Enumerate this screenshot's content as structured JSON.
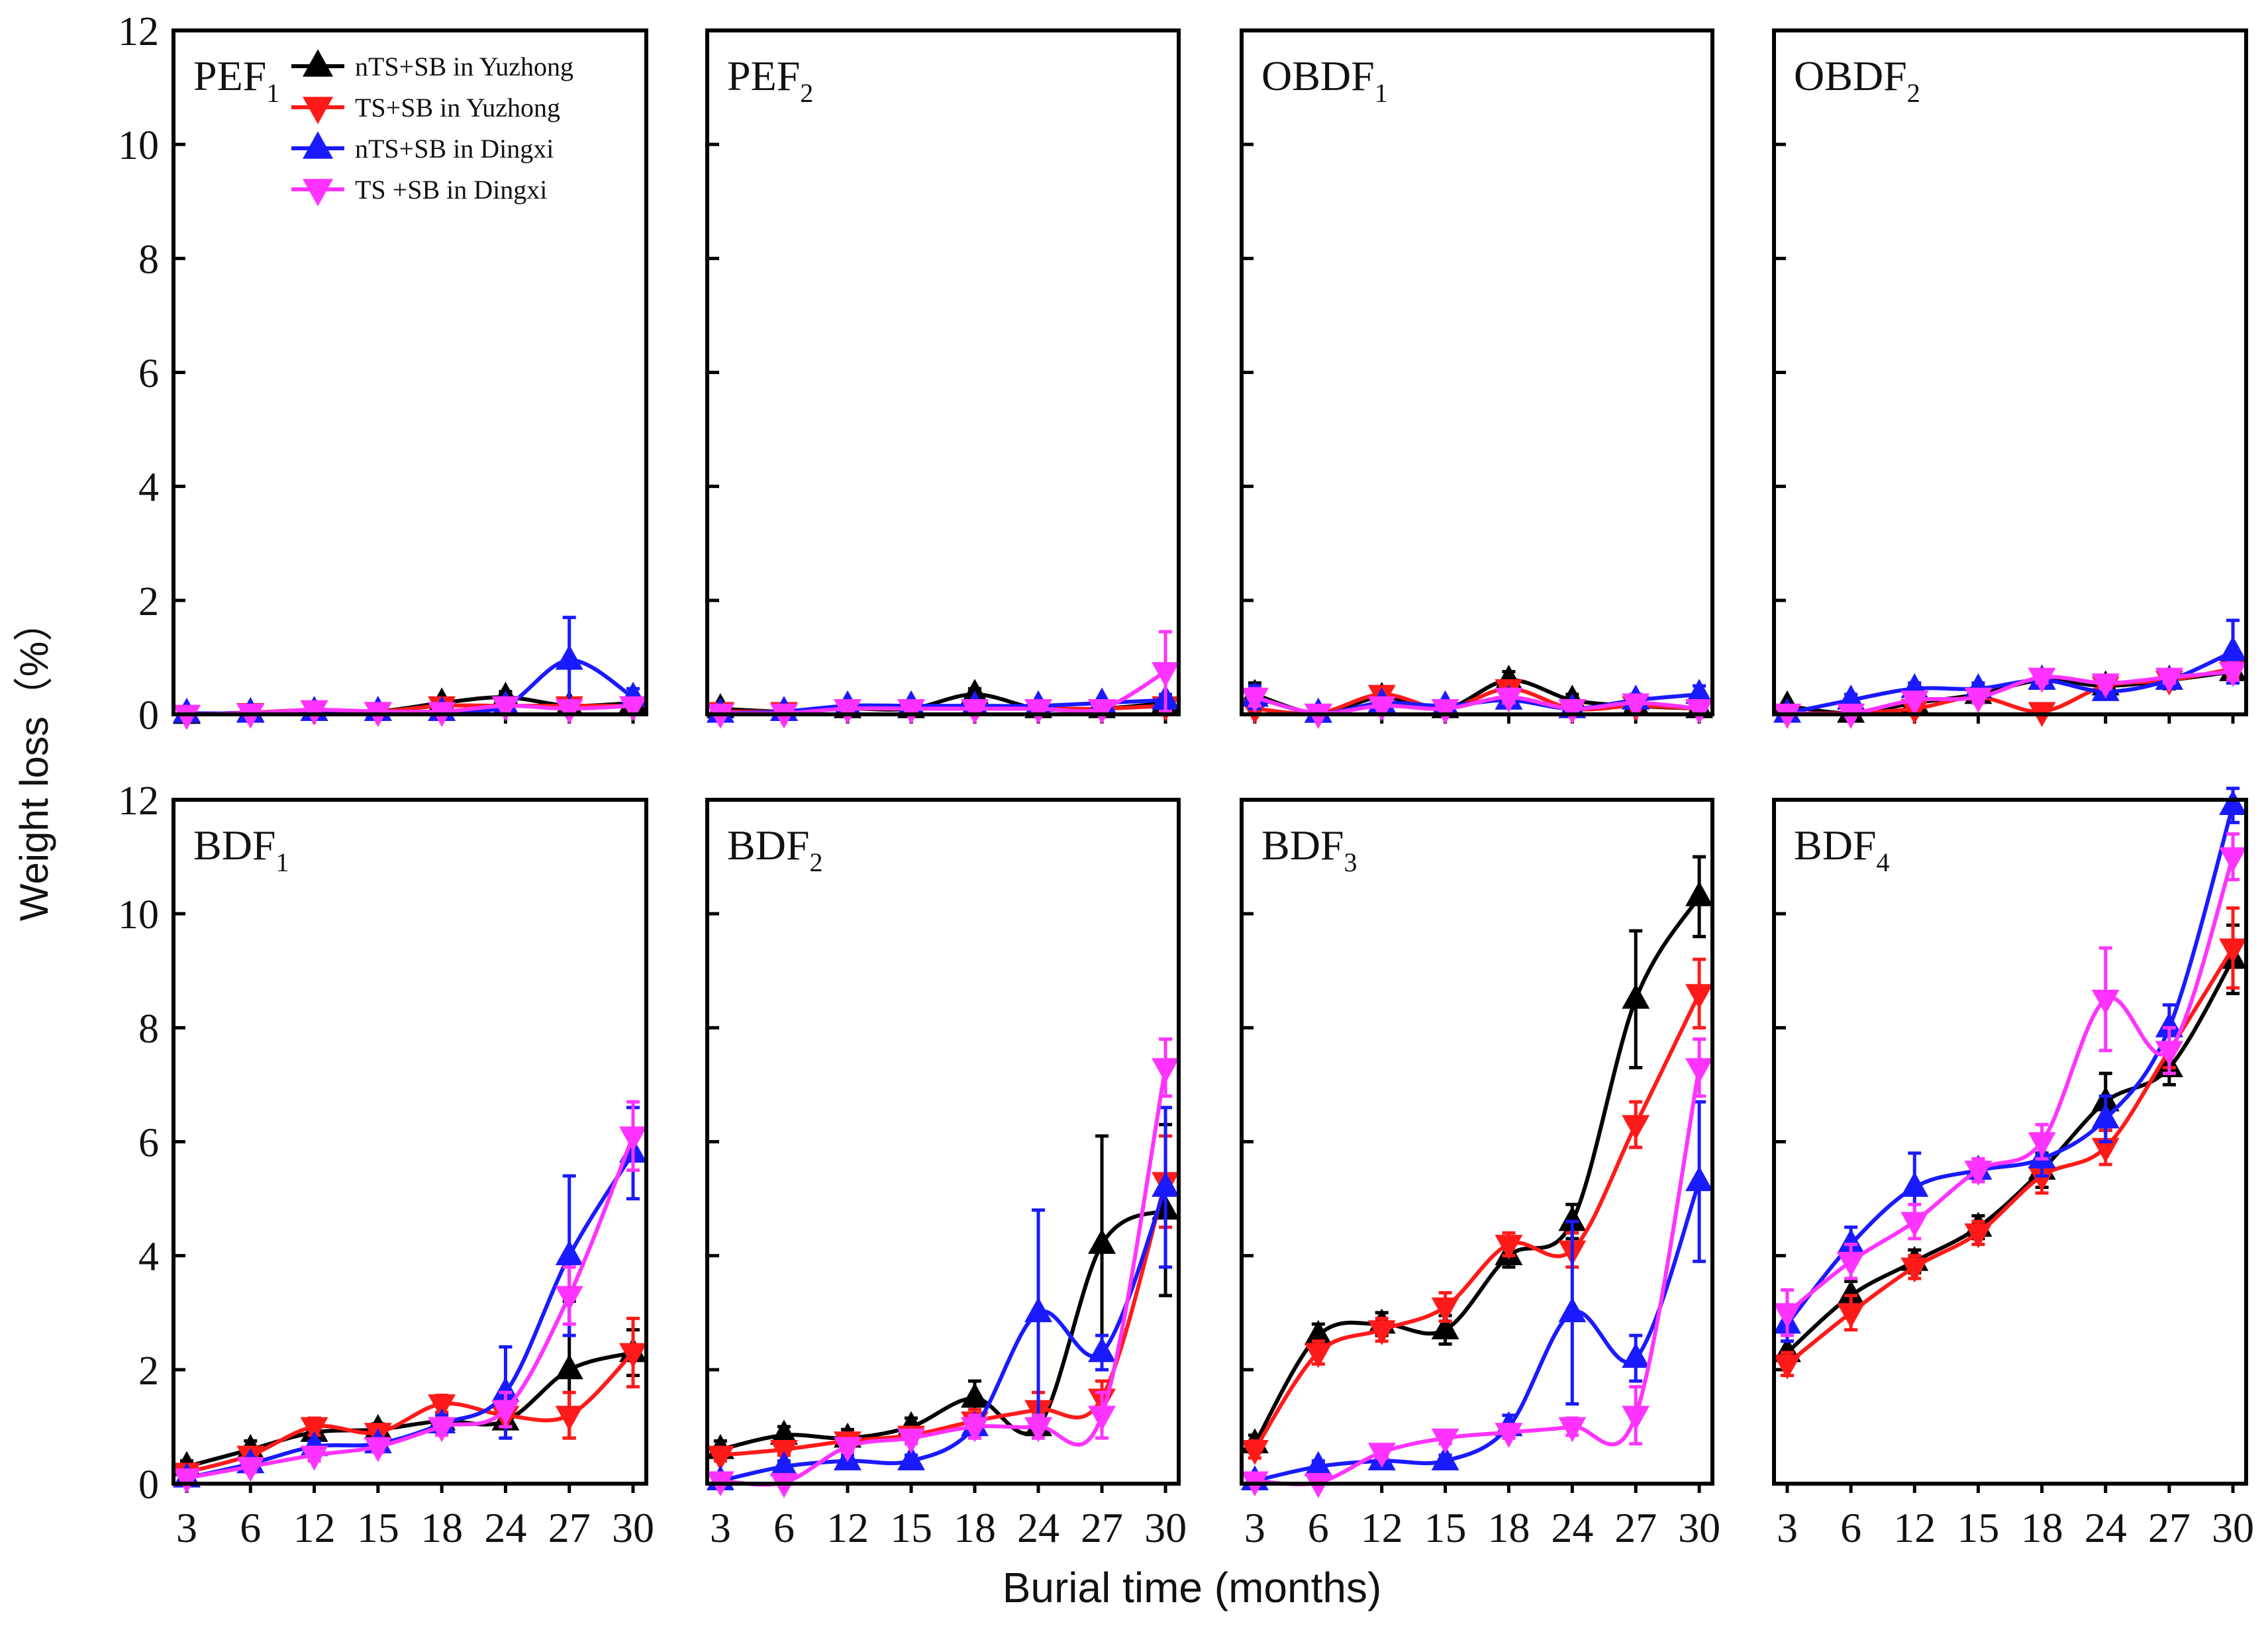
{
  "figure": {
    "ylabel": "Weight loss（%）",
    "xlabel": "Burial time (months)",
    "x_ticks": [
      "3",
      "6",
      "12",
      "15",
      "18",
      "24",
      "27",
      "30"
    ],
    "y_ticks": [
      "0",
      "2",
      "4",
      "6",
      "8",
      "10",
      "12"
    ],
    "ylim": [
      0,
      12
    ]
  },
  "legend": [
    {
      "label": "nTS+SB in Yuzhong",
      "color": "#000000",
      "marker": "triangle-up"
    },
    {
      "label": "TS+SB in Yuzhong",
      "color": "#ff1a1a",
      "marker": "triangle-down"
    },
    {
      "label": "nTS+SB in Dingxi",
      "color": "#1a1aff",
      "marker": "triangle-up"
    },
    {
      "label": "TS +SB in Dingxi",
      "color": "#ff33ff",
      "marker": "triangle-down"
    }
  ],
  "chart_data": [
    {
      "type": "line",
      "title": "PEF",
      "title_sub": "1",
      "categories": [
        "3",
        "6",
        "12",
        "15",
        "18",
        "24",
        "27",
        "30"
      ],
      "ylim": [
        0,
        12
      ],
      "series": [
        {
          "name": "nTS+SB in Yuzhong",
          "values": [
            0,
            0.03,
            0.05,
            0.05,
            0.2,
            0.3,
            0.15,
            0.2
          ],
          "errors": [
            0,
            0.02,
            0.03,
            0.03,
            0.08,
            0.1,
            0.05,
            0.05
          ]
        },
        {
          "name": "TS+SB in Yuzhong",
          "values": [
            0,
            0.03,
            0.08,
            0.05,
            0.15,
            0.15,
            0.15,
            0.15
          ],
          "errors": [
            0,
            0.02,
            0.03,
            0.03,
            0.05,
            0.05,
            0.05,
            0.05
          ]
        },
        {
          "name": "nTS+SB in Dingxi",
          "values": [
            0.02,
            0.02,
            0.05,
            0.05,
            0.05,
            0.15,
            0.95,
            0.3
          ],
          "errors": [
            0,
            0.01,
            0.02,
            0.02,
            0.02,
            0.05,
            0.75,
            0.15
          ]
        },
        {
          "name": "TS +SB in Dingxi",
          "values": [
            0,
            0.02,
            0.08,
            0.05,
            0.05,
            0.15,
            0.1,
            0.15
          ],
          "errors": [
            0,
            0.01,
            0.03,
            0.02,
            0.02,
            0.05,
            0.05,
            0.05
          ]
        }
      ]
    },
    {
      "type": "line",
      "title": "PEF",
      "title_sub": "2",
      "categories": [
        "3",
        "6",
        "12",
        "15",
        "18",
        "24",
        "27",
        "30"
      ],
      "ylim": [
        0,
        12
      ],
      "series": [
        {
          "name": "nTS+SB in Yuzhong",
          "values": [
            0.1,
            0.05,
            0.1,
            0.1,
            0.35,
            0.1,
            0.1,
            0.2
          ],
          "errors": [
            0.05,
            0.02,
            0.03,
            0.03,
            0.1,
            0.03,
            0.03,
            0.05
          ]
        },
        {
          "name": "TS+SB in Yuzhong",
          "values": [
            0.05,
            0.05,
            0.1,
            0.1,
            0.1,
            0.1,
            0.1,
            0.15
          ],
          "errors": [
            0.02,
            0.02,
            0.03,
            0.03,
            0.03,
            0.03,
            0.03,
            0.05
          ]
        },
        {
          "name": "nTS+SB in Dingxi",
          "values": [
            0.02,
            0.05,
            0.15,
            0.15,
            0.15,
            0.15,
            0.2,
            0.25
          ],
          "errors": [
            0.01,
            0.02,
            0.05,
            0.05,
            0.05,
            0.05,
            0.05,
            0.1
          ]
        },
        {
          "name": "TS +SB in Dingxi",
          "values": [
            0.02,
            0.02,
            0.1,
            0.1,
            0.1,
            0.1,
            0.1,
            0.75
          ],
          "errors": [
            0.01,
            0.01,
            0.03,
            0.03,
            0.03,
            0.03,
            0.03,
            0.7
          ]
        }
      ]
    },
    {
      "type": "line",
      "title": "OBDF",
      "title_sub": "1",
      "categories": [
        "3",
        "6",
        "12",
        "15",
        "18",
        "24",
        "27",
        "30"
      ],
      "ylim": [
        0,
        12
      ],
      "series": [
        {
          "name": "nTS+SB in Yuzhong",
          "values": [
            0.35,
            0.02,
            0.3,
            0.1,
            0.6,
            0.25,
            0.15,
            0.1
          ],
          "errors": [
            0.2,
            0.01,
            0.1,
            0.05,
            0.15,
            0.1,
            0.05,
            0.05
          ]
        },
        {
          "name": "TS+SB in Yuzhong",
          "values": [
            0.1,
            0.02,
            0.35,
            0.1,
            0.45,
            0.1,
            0.15,
            0.1
          ],
          "errors": [
            0.05,
            0.01,
            0.1,
            0.05,
            0.1,
            0.05,
            0.05,
            0.05
          ]
        },
        {
          "name": "nTS+SB in Dingxi",
          "values": [
            0.3,
            0.02,
            0.2,
            0.15,
            0.25,
            0.1,
            0.25,
            0.35
          ],
          "errors": [
            0.2,
            0.01,
            0.05,
            0.05,
            0.1,
            0.05,
            0.1,
            0.15
          ]
        },
        {
          "name": "TS +SB in Dingxi",
          "values": [
            0.3,
            0.02,
            0.15,
            0.1,
            0.3,
            0.1,
            0.2,
            0.1
          ],
          "errors": [
            0.15,
            0.01,
            0.05,
            0.05,
            0.1,
            0.05,
            0.05,
            0.05
          ]
        }
      ]
    },
    {
      "type": "line",
      "title": "OBDF",
      "title_sub": "2",
      "categories": [
        "3",
        "6",
        "12",
        "15",
        "18",
        "24",
        "27",
        "30"
      ],
      "ylim": [
        0,
        12
      ],
      "series": [
        {
          "name": "nTS+SB in Yuzhong",
          "values": [
            0.15,
            0.02,
            0.2,
            0.35,
            0.6,
            0.5,
            0.6,
            0.75
          ],
          "errors": [
            0.05,
            0.01,
            0.05,
            0.1,
            0.1,
            0.1,
            0.15,
            0.15
          ]
        },
        {
          "name": "TS+SB in Yuzhong",
          "values": [
            0.02,
            0.02,
            0.1,
            0.3,
            0.05,
            0.5,
            0.6,
            0.8
          ],
          "errors": [
            0.01,
            0.01,
            0.05,
            0.1,
            0.03,
            0.1,
            0.1,
            0.15
          ]
        },
        {
          "name": "nTS+SB in Dingxi",
          "values": [
            0.02,
            0.25,
            0.45,
            0.45,
            0.6,
            0.4,
            0.6,
            1.1
          ],
          "errors": [
            0.01,
            0.1,
            0.1,
            0.1,
            0.1,
            0.1,
            0.1,
            0.55
          ]
        },
        {
          "name": "TS +SB in Dingxi",
          "values": [
            0.02,
            0.02,
            0.25,
            0.3,
            0.65,
            0.55,
            0.65,
            0.75
          ],
          "errors": [
            0.01,
            0.01,
            0.05,
            0.1,
            0.1,
            0.1,
            0.1,
            0.15
          ]
        }
      ]
    },
    {
      "type": "line",
      "title": "BDF",
      "title_sub": "1",
      "categories": [
        "3",
        "6",
        "12",
        "15",
        "18",
        "24",
        "27",
        "30"
      ],
      "ylim": [
        0,
        12
      ],
      "series": [
        {
          "name": "nTS+SB in Yuzhong",
          "values": [
            0.3,
            0.6,
            0.9,
            0.95,
            1.1,
            1.1,
            2.0,
            2.3
          ],
          "errors": [
            0.1,
            0.15,
            0.1,
            0.1,
            0.15,
            0.3,
            1.2,
            0.4
          ]
        },
        {
          "name": "TS+SB in Yuzhong",
          "values": [
            0.2,
            0.5,
            1.0,
            0.9,
            1.4,
            1.2,
            1.2,
            2.3
          ],
          "errors": [
            0.1,
            0.1,
            0.15,
            0.1,
            0.15,
            0.2,
            0.4,
            0.6
          ]
        },
        {
          "name": "nTS+SB in Dingxi",
          "values": [
            0.1,
            0.35,
            0.65,
            0.7,
            1.05,
            1.6,
            4.0,
            5.8
          ],
          "errors": [
            0.05,
            0.1,
            0.1,
            0.1,
            0.15,
            0.8,
            1.4,
            0.8
          ]
        },
        {
          "name": "TS +SB in Dingxi",
          "values": [
            0.1,
            0.3,
            0.5,
            0.65,
            1.0,
            1.3,
            3.3,
            6.1
          ],
          "errors": [
            0.05,
            0.1,
            0.1,
            0.1,
            0.15,
            0.3,
            0.5,
            0.6
          ]
        }
      ]
    },
    {
      "type": "line",
      "title": "BDF",
      "title_sub": "2",
      "categories": [
        "3",
        "6",
        "12",
        "15",
        "18",
        "24",
        "27",
        "30"
      ],
      "ylim": [
        0,
        12
      ],
      "series": [
        {
          "name": "nTS+SB in Yuzhong",
          "values": [
            0.6,
            0.85,
            0.8,
            1.0,
            1.5,
            1.0,
            4.2,
            4.8
          ],
          "errors": [
            0.15,
            0.15,
            0.15,
            0.15,
            0.3,
            0.2,
            1.9,
            1.5
          ]
        },
        {
          "name": "TS+SB in Yuzhong",
          "values": [
            0.5,
            0.6,
            0.75,
            0.85,
            1.1,
            1.3,
            1.5,
            5.3
          ],
          "errors": [
            0.1,
            0.1,
            0.1,
            0.1,
            0.2,
            0.3,
            0.3,
            0.8
          ]
        },
        {
          "name": "nTS+SB in Dingxi",
          "values": [
            0.05,
            0.3,
            0.4,
            0.4,
            1.0,
            3.0,
            2.3,
            5.2
          ],
          "errors": [
            0.02,
            0.1,
            0.1,
            0.1,
            0.2,
            1.8,
            0.3,
            1.4
          ]
        },
        {
          "name": "TS +SB in Dingxi",
          "values": [
            0.05,
            0.02,
            0.65,
            0.8,
            1.0,
            1.0,
            1.2,
            7.3
          ],
          "errors": [
            0.02,
            0.01,
            0.1,
            0.1,
            0.2,
            0.2,
            0.4,
            0.5
          ]
        }
      ]
    },
    {
      "type": "line",
      "title": "BDF",
      "title_sub": "3",
      "categories": [
        "3",
        "6",
        "12",
        "15",
        "18",
        "24",
        "27",
        "30"
      ],
      "ylim": [
        0,
        12
      ],
      "series": [
        {
          "name": "nTS+SB in Yuzhong",
          "values": [
            0.7,
            2.6,
            2.8,
            2.7,
            4.0,
            4.6,
            8.5,
            10.3
          ],
          "errors": [
            0.15,
            0.2,
            0.2,
            0.25,
            0.2,
            0.3,
            1.2,
            0.7
          ]
        },
        {
          "name": "TS+SB in Yuzhong",
          "values": [
            0.6,
            2.3,
            2.7,
            3.1,
            4.2,
            4.1,
            6.3,
            8.6
          ],
          "errors": [
            0.15,
            0.2,
            0.2,
            0.25,
            0.2,
            0.3,
            0.4,
            0.6
          ]
        },
        {
          "name": "nTS+SB in Dingxi",
          "values": [
            0.05,
            0.3,
            0.4,
            0.4,
            1.0,
            3.0,
            2.2,
            5.3
          ],
          "errors": [
            0.02,
            0.1,
            0.1,
            0.1,
            0.2,
            1.6,
            0.4,
            1.4
          ]
        },
        {
          "name": "TS +SB in Dingxi",
          "values": [
            0.05,
            0.02,
            0.55,
            0.8,
            0.9,
            1.0,
            1.2,
            7.3
          ],
          "errors": [
            0.02,
            0.01,
            0.1,
            0.1,
            0.1,
            0.15,
            0.5,
            0.5
          ]
        }
      ]
    },
    {
      "type": "line",
      "title": "BDF",
      "title_sub": "4",
      "categories": [
        "3",
        "6",
        "12",
        "15",
        "18",
        "24",
        "27",
        "30"
      ],
      "ylim": [
        0,
        12
      ],
      "series": [
        {
          "name": "nTS+SB in Yuzhong",
          "values": [
            2.3,
            3.3,
            3.9,
            4.5,
            5.5,
            6.7,
            7.3,
            9.2
          ],
          "errors": [
            0.2,
            0.25,
            0.2,
            0.2,
            0.3,
            0.5,
            0.3,
            0.6
          ]
        },
        {
          "name": "TS+SB in Yuzhong",
          "values": [
            2.1,
            3.0,
            3.8,
            4.4,
            5.4,
            5.9,
            7.6,
            9.4
          ],
          "errors": [
            0.2,
            0.3,
            0.2,
            0.2,
            0.3,
            0.3,
            0.3,
            0.7
          ]
        },
        {
          "name": "nTS+SB in Dingxi",
          "values": [
            2.8,
            4.2,
            5.2,
            5.5,
            5.7,
            6.4,
            8.0,
            11.9
          ],
          "errors": [
            0.3,
            0.3,
            0.6,
            0.2,
            0.3,
            0.4,
            0.4,
            0.3
          ]
        },
        {
          "name": "TS +SB in Dingxi",
          "values": [
            3.0,
            3.9,
            4.6,
            5.5,
            6.0,
            8.5,
            7.6,
            11.0
          ],
          "errors": [
            0.4,
            0.3,
            0.3,
            0.2,
            0.3,
            0.9,
            0.4,
            0.4
          ]
        }
      ]
    }
  ]
}
